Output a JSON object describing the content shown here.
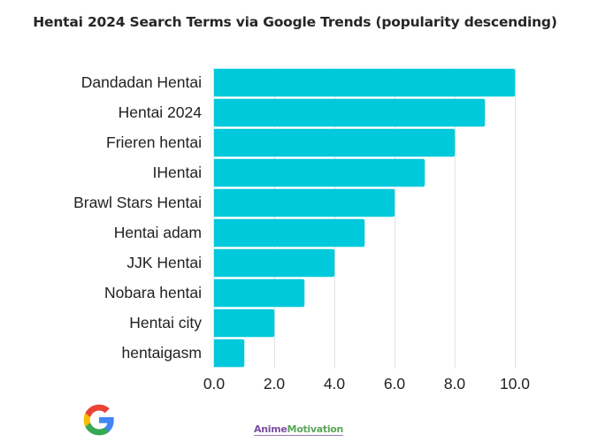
{
  "title": "Hentai 2024 Search Terms via Google Trends  (popularity descending)",
  "colors": {
    "bar": "#00c9db",
    "grid": "#e3e3e3",
    "text": "#222222"
  },
  "footer": {
    "logo_icon": "google-g-logo",
    "brand_part1": "Anime",
    "brand_part2": "Motivation"
  },
  "chart_data": {
    "type": "bar",
    "orientation": "horizontal",
    "title": "Hentai 2024 Search Terms via Google Trends  (popularity descending)",
    "xlabel": "",
    "ylabel": "",
    "categories": [
      "Dandadan Hentai",
      "Hentai 2024",
      "Frieren hentai",
      "IHentai",
      "Brawl Stars Hentai",
      "Hentai adam",
      "JJK Hentai",
      "Nobara hentai",
      "Hentai city",
      "hentaigasm"
    ],
    "values": [
      10,
      9,
      8,
      7,
      6,
      5,
      4,
      3,
      2,
      1
    ],
    "xlim": [
      0,
      10
    ],
    "xticks": [
      "0.0",
      "2.0",
      "4.0",
      "6.0",
      "8.0",
      "10.0"
    ],
    "grid": "vertical",
    "legend": "none"
  }
}
